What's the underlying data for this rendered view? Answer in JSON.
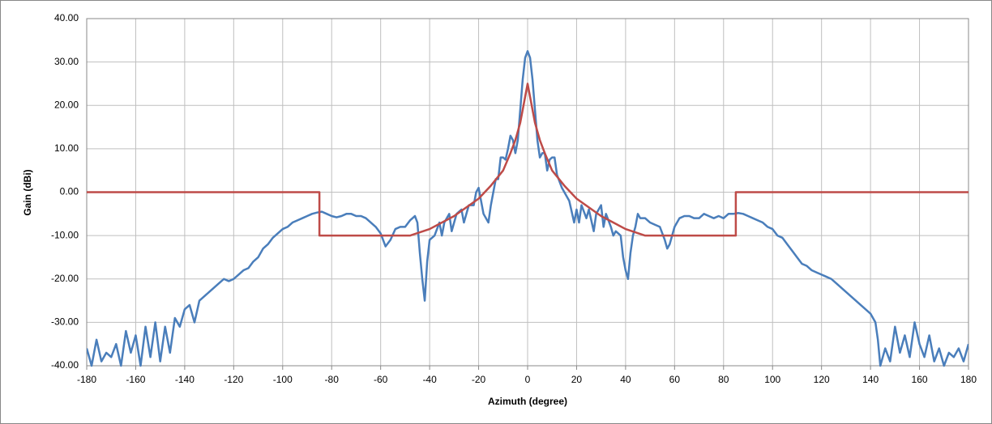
{
  "chart_data": {
    "type": "line",
    "x_label": "Azimuth (degree)",
    "y_label": "Gain (dBi)",
    "xlim": [
      -180,
      180
    ],
    "ylim": [
      -40,
      40
    ],
    "xticks": [
      -180,
      -160,
      -140,
      -120,
      -100,
      -80,
      -60,
      -40,
      -20,
      0,
      20,
      40,
      60,
      80,
      100,
      120,
      140,
      160,
      180
    ],
    "yticks": [
      {
        "value": 40,
        "label": "40.00"
      },
      {
        "value": 30,
        "label": "30.00"
      },
      {
        "value": 20,
        "label": "20.00"
      },
      {
        "value": 10,
        "label": "10.00"
      },
      {
        "value": 0,
        "label": "0.00"
      },
      {
        "value": -10,
        "label": "-10.00"
      },
      {
        "value": -20,
        "label": "-20.00"
      },
      {
        "value": -30,
        "label": "-30.00"
      },
      {
        "value": -40,
        "label": "-40.00"
      }
    ],
    "grid": true,
    "series": [
      {
        "color": "#4a7ebb",
        "x": [
          -180,
          -178,
          -176,
          -174,
          -172,
          -170,
          -168,
          -166,
          -164,
          -162,
          -160,
          -158,
          -156,
          -154,
          -152,
          -150,
          -148,
          -146,
          -144,
          -142,
          -140,
          -138,
          -136,
          -134,
          -132,
          -130,
          -128,
          -126,
          -124,
          -122,
          -120,
          -118,
          -116,
          -114,
          -112,
          -110,
          -108,
          -106,
          -104,
          -102,
          -100,
          -98,
          -96,
          -94,
          -92,
          -90,
          -88,
          -86,
          -84,
          -82,
          -80,
          -78,
          -76,
          -74,
          -72,
          -70,
          -68,
          -66,
          -64,
          -62,
          -60,
          -58,
          -56,
          -54,
          -52,
          -50,
          -48,
          -46,
          -45,
          -44,
          -43,
          -42,
          -41,
          -40,
          -38,
          -36,
          -35,
          -34,
          -32,
          -31,
          -29,
          -27,
          -26,
          -24,
          -22,
          -21,
          -20,
          -19,
          -18,
          -16,
          -15,
          -13,
          -12,
          -11,
          -10,
          -9,
          -8,
          -7,
          -6,
          -5,
          -4,
          -3,
          -2,
          -1,
          0,
          1,
          2,
          3,
          4,
          5,
          6,
          7,
          8,
          9,
          10,
          11,
          12,
          14,
          16,
          17,
          19,
          20,
          21,
          22,
          24,
          25,
          27,
          28,
          30,
          31,
          32,
          34,
          35,
          36,
          38,
          39,
          40,
          41,
          42,
          43,
          44,
          45,
          46,
          48,
          50,
          52,
          54,
          56,
          57,
          58,
          60,
          62,
          64,
          66,
          68,
          70,
          72,
          74,
          76,
          78,
          80,
          82,
          84,
          86,
          88,
          90,
          92,
          94,
          96,
          98,
          100,
          102,
          104,
          106,
          108,
          110,
          112,
          114,
          116,
          118,
          120,
          122,
          124,
          126,
          128,
          130,
          132,
          134,
          136,
          138,
          140,
          142,
          143,
          144,
          146,
          148,
          150,
          152,
          154,
          156,
          158,
          160,
          162,
          164,
          166,
          168,
          170,
          172,
          174,
          176,
          178,
          180
        ],
        "values": [
          -36,
          -40,
          -34,
          -39,
          -37,
          -38,
          -35,
          -40,
          -32,
          -37,
          -33,
          -40,
          -31,
          -38,
          -30,
          -39,
          -31,
          -37,
          -29,
          -31,
          -27,
          -26,
          -30,
          -25,
          -24,
          -23,
          -22,
          -21,
          -20,
          -20.5,
          -20,
          -19,
          -18,
          -17.5,
          -16,
          -15,
          -13,
          -12,
          -10.5,
          -9.5,
          -8.5,
          -8,
          -7,
          -6.5,
          -6,
          -5.5,
          -5,
          -4.7,
          -4.5,
          -5,
          -5.5,
          -5.8,
          -5.5,
          -5,
          -5,
          -5.5,
          -5.5,
          -6,
          -7,
          -8,
          -9.5,
          -12.5,
          -11,
          -8.5,
          -8,
          -8,
          -6.5,
          -5.5,
          -7,
          -14,
          -20,
          -25,
          -16,
          -11,
          -10,
          -7,
          -10,
          -7,
          -5,
          -9,
          -5,
          -4,
          -7,
          -3,
          -3,
          0,
          1,
          -2,
          -5,
          -7,
          -3,
          3,
          3,
          8,
          8,
          7.5,
          10,
          13,
          12,
          9,
          12,
          19,
          26,
          31,
          32.5,
          31,
          26,
          19,
          12,
          8,
          9,
          9,
          5,
          7.5,
          8,
          8,
          4,
          1,
          -1,
          -2,
          -7,
          -4,
          -7,
          -3,
          -6,
          -4,
          -9,
          -5,
          -3,
          -8,
          -5,
          -8,
          -10,
          -9,
          -10,
          -15,
          -18,
          -20,
          -14,
          -10,
          -8,
          -5,
          -6,
          -6,
          -7,
          -7.5,
          -8,
          -11,
          -13,
          -12,
          -8,
          -6,
          -5.5,
          -5.5,
          -6,
          -6,
          -5,
          -5.5,
          -6,
          -5.5,
          -6,
          -5,
          -5,
          -4.8,
          -5,
          -5.5,
          -6,
          -6.5,
          -7,
          -8,
          -8.5,
          -10,
          -10.5,
          -12,
          -13.5,
          -15,
          -16.5,
          -17,
          -18,
          -18.5,
          -19,
          -19.5,
          -20,
          -21,
          -22,
          -23,
          -24,
          -25,
          -26,
          -27,
          -28,
          -30,
          -34,
          -40,
          -36,
          -39,
          -31,
          -37,
          -33,
          -38,
          -30,
          -35,
          -38,
          -33,
          -39,
          -36,
          -40,
          -37,
          -38,
          -36,
          -39,
          -35
        ]
      },
      {
        "color": "#be4b48",
        "x": [
          -180,
          -85,
          -85,
          -48,
          -40,
          -30,
          -20,
          -15,
          -10,
          -7,
          -5,
          -3,
          -1,
          0,
          1,
          3,
          5,
          7,
          10,
          15,
          20,
          30,
          40,
          48,
          85,
          85,
          180
        ],
        "values": [
          0,
          0,
          -10,
          -10,
          -8.5,
          -5.5,
          -1.5,
          1.5,
          5,
          9,
          12,
          16,
          22,
          25,
          22,
          16,
          12,
          9,
          5,
          1.5,
          -1.5,
          -5.5,
          -8.5,
          -10,
          -10,
          0,
          0
        ]
      }
    ]
  }
}
